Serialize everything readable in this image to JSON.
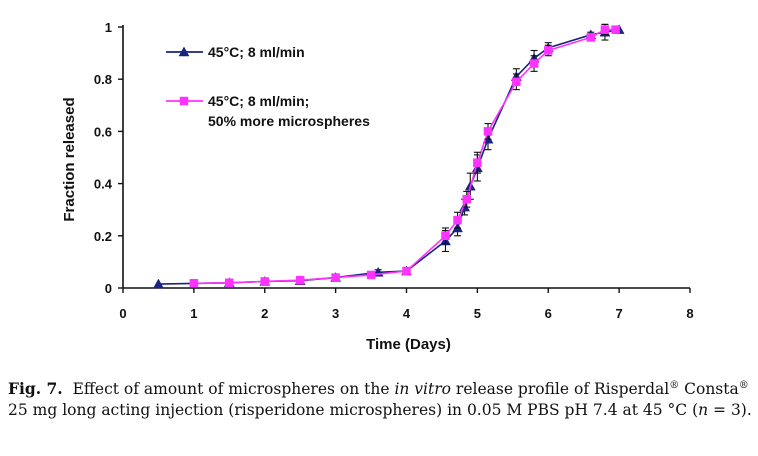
{
  "chart_data": {
    "type": "line",
    "xlabel": "Time (Days)",
    "ylabel": "Fraction released",
    "xlim": [
      0,
      8
    ],
    "ylim": [
      0,
      1
    ],
    "xticks": [
      0,
      1,
      2,
      3,
      4,
      5,
      6,
      7,
      8
    ],
    "yticks": [
      0,
      0.2,
      0.4,
      0.6,
      0.8,
      1
    ],
    "xtick_labels": [
      "0",
      "1",
      "2",
      "3",
      "4",
      "5",
      "6",
      "7",
      "8"
    ],
    "ytick_labels": [
      "0",
      "0.2",
      "0.4",
      "0.6",
      "0.8",
      "1"
    ],
    "grid": false,
    "legend_position": "top-left",
    "series": [
      {
        "name": "45°C; 8 ml/min",
        "color": "#1a237e",
        "marker": "triangle",
        "x": [
          0.5,
          1.5,
          2.0,
          2.5,
          3.0,
          3.6,
          4.0,
          4.55,
          4.72,
          4.82,
          4.9,
          5.0,
          5.15,
          5.55,
          5.8,
          6.0,
          6.6,
          6.8,
          7.0
        ],
        "y": [
          0.015,
          0.02,
          0.025,
          0.028,
          0.04,
          0.06,
          0.065,
          0.18,
          0.23,
          0.31,
          0.39,
          0.46,
          0.57,
          0.81,
          0.88,
          0.92,
          0.97,
          0.98,
          0.99
        ],
        "err": [
          0,
          0,
          0,
          0,
          0,
          0.01,
          0,
          0.04,
          0.03,
          0.03,
          0.05,
          0.05,
          0.04,
          0.03,
          0.03,
          0.02,
          0.01,
          0.03,
          0
        ]
      },
      {
        "name": "45°C; 8 ml/min;\n50% more microspheres",
        "color": "#ff33ff",
        "marker": "square",
        "x": [
          1.0,
          1.5,
          2.0,
          2.5,
          3.0,
          3.5,
          4.0,
          4.55,
          4.72,
          4.85,
          5.0,
          5.15,
          5.55,
          5.8,
          6.0,
          6.6,
          6.8,
          6.95
        ],
        "y": [
          0.018,
          0.02,
          0.025,
          0.03,
          0.04,
          0.05,
          0.065,
          0.2,
          0.26,
          0.34,
          0.48,
          0.6,
          0.79,
          0.86,
          0.91,
          0.96,
          0.99,
          0.99
        ],
        "err": [
          0,
          0,
          0,
          0,
          0,
          0,
          0,
          0.03,
          0.03,
          0.03,
          0.04,
          0.03,
          0.03,
          0.03,
          0.02,
          0.01,
          0.02,
          0.01
        ]
      }
    ],
    "legend": [
      {
        "lines": [
          "45°C; 8 ml/min"
        ]
      },
      {
        "lines": [
          "45°C; 8 ml/min;",
          "50% more microspheres"
        ]
      }
    ]
  },
  "caption": {
    "label": "Fig. 7.",
    "text_a": "Effect of amount of microspheres on the ",
    "text_italic": "in vitro",
    "text_b": " release profile of Risperdal",
    "reg1": "®",
    "text_c": " Consta",
    "reg2": "®",
    "text_d": " 25 mg long acting injection (risperidone microspheres) in 0.05 M PBS pH 7.4 at 45 °C (",
    "n_var": "n",
    "text_e": " = 3)."
  }
}
